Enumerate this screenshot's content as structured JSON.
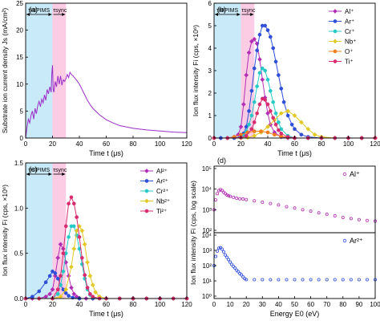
{
  "figure": {
    "background": "#ffffff"
  },
  "chart_data": [
    {
      "panel": "(a)",
      "type": "line",
      "xlabel": "Time t (μs)",
      "ylabel": "Substrate ion current density Js (mA/cm²)",
      "xlim": [
        0,
        120
      ],
      "ylim": [
        0,
        25
      ],
      "xticks": [
        "0",
        "20",
        "40",
        "60",
        "80",
        "100",
        "120"
      ],
      "yticks": [
        "0",
        "5",
        "10",
        "15",
        "20",
        "25"
      ],
      "regions": [
        {
          "label": "τHIPIMS",
          "x0": 0,
          "x1": 20,
          "color": "#bfe6f7"
        },
        {
          "label": "τsync",
          "x0": 20,
          "x1": 30,
          "color": "#fbc3df"
        }
      ],
      "series": [
        {
          "color": "#9b2dc7",
          "x": [
            0,
            1,
            2,
            3,
            4,
            5,
            6,
            7,
            8,
            9,
            10,
            11,
            12,
            13,
            14,
            15,
            16,
            17,
            18,
            19,
            19.5,
            20,
            20.5,
            21,
            22,
            23,
            24,
            25,
            26,
            27,
            28,
            29,
            30,
            31,
            32,
            33,
            34,
            35,
            36,
            37,
            38,
            40,
            42,
            44,
            46,
            48,
            50,
            55,
            60,
            65,
            70,
            80,
            90,
            100,
            110,
            120
          ],
          "y": [
            0,
            2,
            3.5,
            2.8,
            4.2,
            5,
            3.5,
            5.5,
            4.5,
            6,
            6.8,
            5.8,
            7.2,
            6.5,
            8,
            7,
            9,
            8.2,
            9.5,
            8.5,
            12,
            13.5,
            9,
            8.5,
            10.5,
            9.5,
            11.5,
            10,
            11.5,
            9.8,
            10.8,
            10.5,
            11,
            11.8,
            11.2,
            12.2,
            11.8,
            11.6,
            11.3,
            11,
            10.7,
            10,
            9,
            8,
            7,
            6.2,
            5.5,
            4.3,
            3.4,
            2.8,
            2.3,
            1.8,
            1.5,
            1.3,
            1.1,
            1.0
          ]
        }
      ]
    },
    {
      "panel": "(b)",
      "type": "line",
      "xlabel": "Time t (μs)",
      "ylabel": "Ion flux intensity Fi (cps, ×10⁶)",
      "xlim": [
        0,
        120
      ],
      "ylim": [
        0,
        6
      ],
      "xticks": [
        "0",
        "20",
        "40",
        "60",
        "80",
        "100",
        "120"
      ],
      "yticks": [
        "0",
        "1",
        "2",
        "3",
        "4",
        "5",
        "6"
      ],
      "regions": [
        {
          "label": "τHIPIMS",
          "x0": 0,
          "x1": 20,
          "color": "#bfe6f7"
        },
        {
          "label": "τsync",
          "x0": 20,
          "x1": 30,
          "color": "#fbc3df"
        }
      ],
      "legend": "top-right",
      "series": [
        {
          "name": "Al⁺",
          "color": "#b22fb5",
          "marker": "diamond",
          "x": [
            0,
            5,
            10,
            15,
            18,
            20,
            22,
            24,
            26,
            28,
            30,
            32,
            34,
            36,
            38,
            40,
            42,
            45,
            50,
            55,
            60,
            70,
            80,
            90,
            100,
            110,
            120
          ],
          "y": [
            0,
            0,
            0,
            0.05,
            0.15,
            0.5,
            1.5,
            2.8,
            3.8,
            4.3,
            4.4,
            4.2,
            3.5,
            2.6,
            1.8,
            1.1,
            0.6,
            0.25,
            0.05,
            0,
            0,
            0,
            0,
            0,
            0,
            0,
            0
          ]
        },
        {
          "name": "Ar⁺",
          "color": "#2f4fd8",
          "marker": "circle",
          "x": [
            0,
            5,
            10,
            15,
            20,
            22,
            24,
            26,
            28,
            30,
            32,
            34,
            36,
            38,
            40,
            42,
            44,
            46,
            48,
            50,
            52,
            55,
            58,
            60,
            65,
            70,
            80,
            90,
            100,
            110,
            120
          ],
          "y": [
            0,
            0,
            0,
            0,
            0.05,
            0.2,
            0.5,
            1.2,
            2.1,
            3.1,
            3.9,
            4.6,
            5.0,
            5.0,
            4.8,
            4.5,
            4.0,
            3.4,
            2.8,
            2.2,
            1.6,
            1.0,
            0.6,
            0.4,
            0.15,
            0.05,
            0,
            0,
            0,
            0,
            0
          ]
        },
        {
          "name": "Cr⁺",
          "color": "#27c9c7",
          "marker": "circle",
          "x": [
            0,
            10,
            20,
            22,
            24,
            26,
            28,
            30,
            32,
            34,
            36,
            38,
            40,
            42,
            44,
            46,
            48,
            50,
            55,
            60,
            70,
            80,
            90,
            100,
            110,
            120
          ],
          "y": [
            0,
            0,
            0.02,
            0.1,
            0.3,
            0.6,
            1.0,
            1.6,
            2.3,
            2.9,
            3.1,
            3.0,
            2.6,
            2.1,
            1.6,
            1.1,
            0.7,
            0.4,
            0.1,
            0,
            0,
            0,
            0,
            0,
            0,
            0
          ]
        },
        {
          "name": "Nb⁺",
          "color": "#e3c923",
          "marker": "diamond",
          "x": [
            0,
            10,
            20,
            25,
            30,
            35,
            40,
            45,
            50,
            55,
            60,
            65,
            70,
            75,
            80,
            90,
            100,
            110,
            120
          ],
          "y": [
            0,
            0,
            0,
            0.02,
            0.1,
            0.25,
            0.5,
            0.8,
            1.1,
            1.2,
            1.0,
            0.7,
            0.4,
            0.15,
            0.05,
            0,
            0,
            0,
            0
          ]
        },
        {
          "name": "O⁺",
          "color": "#ef7d1a",
          "marker": "circle",
          "x": [
            0,
            10,
            15,
            20,
            25,
            30,
            35,
            40,
            45,
            50,
            55,
            60,
            70,
            80,
            90,
            100,
            110,
            120
          ],
          "y": [
            0,
            0,
            0.05,
            0.15,
            0.25,
            0.3,
            0.3,
            0.25,
            0.15,
            0.08,
            0.03,
            0,
            0,
            0,
            0,
            0,
            0,
            0
          ]
        },
        {
          "name": "Ti⁺",
          "color": "#d82b6f",
          "marker": "circle",
          "x": [
            0,
            10,
            20,
            24,
            28,
            30,
            32,
            34,
            36,
            38,
            40,
            42,
            44,
            46,
            48,
            50,
            55,
            60,
            70,
            80,
            90,
            100,
            110,
            120
          ],
          "y": [
            0,
            0,
            0.02,
            0.1,
            0.4,
            0.7,
            1.1,
            1.5,
            1.75,
            1.7,
            1.5,
            1.2,
            0.9,
            0.6,
            0.35,
            0.2,
            0.05,
            0,
            0,
            0,
            0,
            0,
            0,
            0
          ]
        }
      ]
    },
    {
      "panel": "(c)",
      "type": "line",
      "xlabel": "Time t (μs)",
      "ylabel": "Ion flux intensity Fi (cps, ×10⁶)",
      "xlim": [
        0,
        120
      ],
      "ylim": [
        0,
        1.5
      ],
      "xticks": [
        "0",
        "20",
        "40",
        "60",
        "80",
        "100",
        "120"
      ],
      "yticks": [
        "0.0",
        "0.5",
        "1.0",
        "1.5"
      ],
      "regions": [
        {
          "label": "τHIPIMS",
          "x0": 0,
          "x1": 20,
          "color": "#bfe6f7"
        },
        {
          "label": "τsync",
          "x0": 20,
          "x1": 30,
          "color": "#fbc3df"
        }
      ],
      "legend": "top-right",
      "series": [
        {
          "name": "Al²⁺",
          "color": "#b22fb5",
          "marker": "diamond",
          "x": [
            0,
            5,
            10,
            15,
            18,
            20,
            22,
            24,
            26,
            28,
            30,
            32,
            34,
            36,
            38,
            40,
            45,
            50,
            60,
            70,
            80,
            90,
            100,
            110,
            120
          ],
          "y": [
            0,
            0,
            0,
            0.02,
            0.05,
            0.1,
            0.25,
            0.45,
            0.6,
            0.55,
            0.4,
            0.25,
            0.12,
            0.05,
            0.02,
            0,
            0,
            0,
            0,
            0,
            0,
            0,
            0,
            0,
            0
          ]
        },
        {
          "name": "Ar²⁺",
          "color": "#2f4fd8",
          "marker": "circle",
          "x": [
            0,
            5,
            10,
            15,
            18,
            20,
            22,
            24,
            26,
            28,
            30,
            32,
            35,
            40,
            50,
            60,
            70,
            80,
            90,
            100,
            110,
            120
          ],
          "y": [
            0,
            0.02,
            0.08,
            0.18,
            0.25,
            0.3,
            0.28,
            0.22,
            0.15,
            0.1,
            0.06,
            0.03,
            0.01,
            0,
            0,
            0,
            0,
            0,
            0,
            0,
            0,
            0
          ]
        },
        {
          "name": "Cr²⁺",
          "color": "#27c9c7",
          "marker": "circle",
          "x": [
            0,
            10,
            20,
            24,
            26,
            28,
            30,
            32,
            34,
            36,
            38,
            40,
            42,
            44,
            46,
            48,
            50,
            55,
            60,
            70,
            80,
            90,
            100,
            110,
            120
          ],
          "y": [
            0,
            0,
            0,
            0.05,
            0.15,
            0.3,
            0.5,
            0.68,
            0.8,
            0.8,
            0.7,
            0.55,
            0.38,
            0.22,
            0.1,
            0.04,
            0.01,
            0,
            0,
            0,
            0,
            0,
            0,
            0,
            0
          ]
        },
        {
          "name": "Nb²⁺",
          "color": "#e3c923",
          "marker": "diamond",
          "x": [
            0,
            10,
            20,
            26,
            30,
            34,
            36,
            38,
            40,
            42,
            44,
            46,
            48,
            50,
            52,
            55,
            60,
            70,
            80,
            90,
            100,
            110,
            120
          ],
          "y": [
            0,
            0,
            0,
            0.02,
            0.1,
            0.35,
            0.55,
            0.75,
            0.8,
            0.75,
            0.6,
            0.4,
            0.25,
            0.15,
            0.07,
            0.02,
            0,
            0,
            0,
            0,
            0,
            0,
            0
          ]
        },
        {
          "name": "Ti²⁺",
          "color": "#d82b6f",
          "marker": "circle",
          "x": [
            0,
            10,
            20,
            24,
            26,
            28,
            30,
            32,
            34,
            36,
            38,
            40,
            42,
            44,
            46,
            48,
            50,
            55,
            60,
            70,
            80,
            90,
            100,
            110,
            120
          ],
          "y": [
            0,
            0,
            0,
            0.1,
            0.25,
            0.5,
            0.8,
            1.05,
            1.12,
            1.05,
            0.9,
            0.68,
            0.45,
            0.26,
            0.12,
            0.05,
            0.02,
            0,
            0,
            0,
            0,
            0,
            0,
            0,
            0
          ]
        }
      ]
    },
    {
      "panel": "(d)",
      "type": "scatter",
      "xlabel": "Energy E0 (eV)",
      "ylabel": "Ion flux intensity Fi (cps, log scale)",
      "xlim": [
        0,
        100
      ],
      "xticks": [
        "0",
        "10",
        "20",
        "30",
        "40",
        "50",
        "60",
        "70",
        "80",
        "90",
        "100"
      ],
      "subplots": [
        {
          "name": "Al⁺",
          "color": "#b22fb5",
          "yscale": "log",
          "ylim": [
            100,
            100000
          ],
          "yticks": [
            "10²",
            "10³",
            "10⁴",
            "10⁵"
          ],
          "x": [
            0,
            1,
            2,
            3,
            4,
            5,
            6,
            7,
            8,
            9,
            10,
            12,
            14,
            16,
            18,
            20,
            25,
            30,
            35,
            40,
            45,
            50,
            55,
            60,
            65,
            70,
            75,
            80,
            85,
            90,
            95,
            100
          ],
          "y": [
            1000,
            3000,
            6000,
            8500,
            9500,
            8500,
            7000,
            6000,
            5200,
            4800,
            4500,
            4000,
            3600,
            3400,
            3300,
            3100,
            2700,
            2300,
            2000,
            1700,
            1400,
            1200,
            1000,
            850,
            700,
            600,
            500,
            420,
            370,
            330,
            300,
            280
          ]
        },
        {
          "name": "Ar²⁺",
          "color": "#2f4fd8",
          "yscale": "log",
          "ylim": [
            1,
            10000
          ],
          "yticks": [
            "10⁰",
            "10¹",
            "10²",
            "10³",
            "10⁴"
          ],
          "x": [
            0,
            1,
            2,
            3,
            4,
            5,
            6,
            7,
            8,
            9,
            10,
            11,
            12,
            13,
            14,
            15,
            16,
            17,
            18,
            19,
            20,
            25,
            30,
            35,
            40,
            45,
            50,
            55,
            60,
            65,
            70,
            75,
            80,
            85,
            90,
            95,
            100
          ],
          "y": [
            100,
            400,
            900,
            1400,
            1500,
            1200,
            800,
            500,
            350,
            250,
            170,
            120,
            90,
            70,
            50,
            40,
            30,
            25,
            18,
            14,
            12,
            12,
            12,
            12,
            12,
            12,
            12,
            12,
            12,
            12,
            12,
            12,
            12,
            12,
            12,
            12,
            12
          ]
        }
      ]
    }
  ]
}
